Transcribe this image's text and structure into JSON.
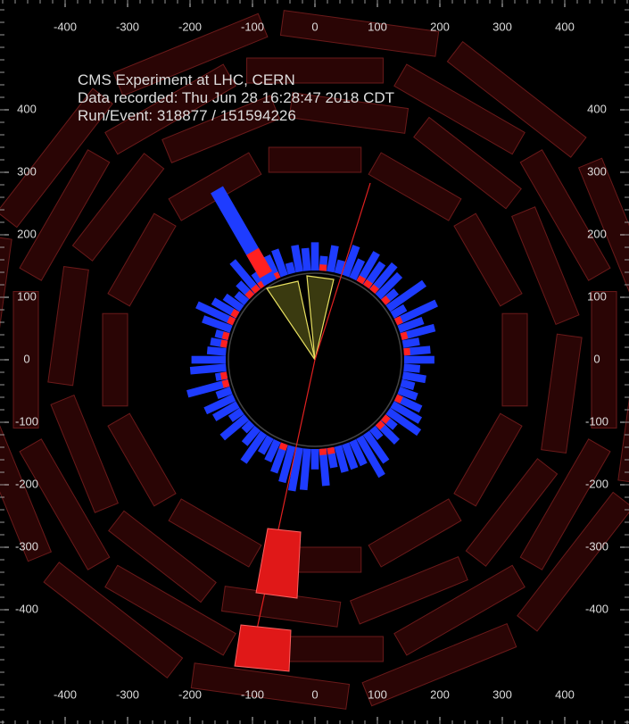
{
  "info": {
    "lines": [
      "CMS Experiment at LHC, CERN",
      "Data recorded: Thu Jun 28 16:28:47 2018 CDT",
      "Run/Event: 318877 / 151594226"
    ]
  },
  "axes": {
    "x_ticks": [
      -400,
      -300,
      -200,
      -100,
      0,
      100,
      200,
      300,
      400
    ],
    "y_ticks": [
      400,
      300,
      200,
      100,
      0,
      -100,
      -200,
      -300,
      -400
    ]
  }
}
